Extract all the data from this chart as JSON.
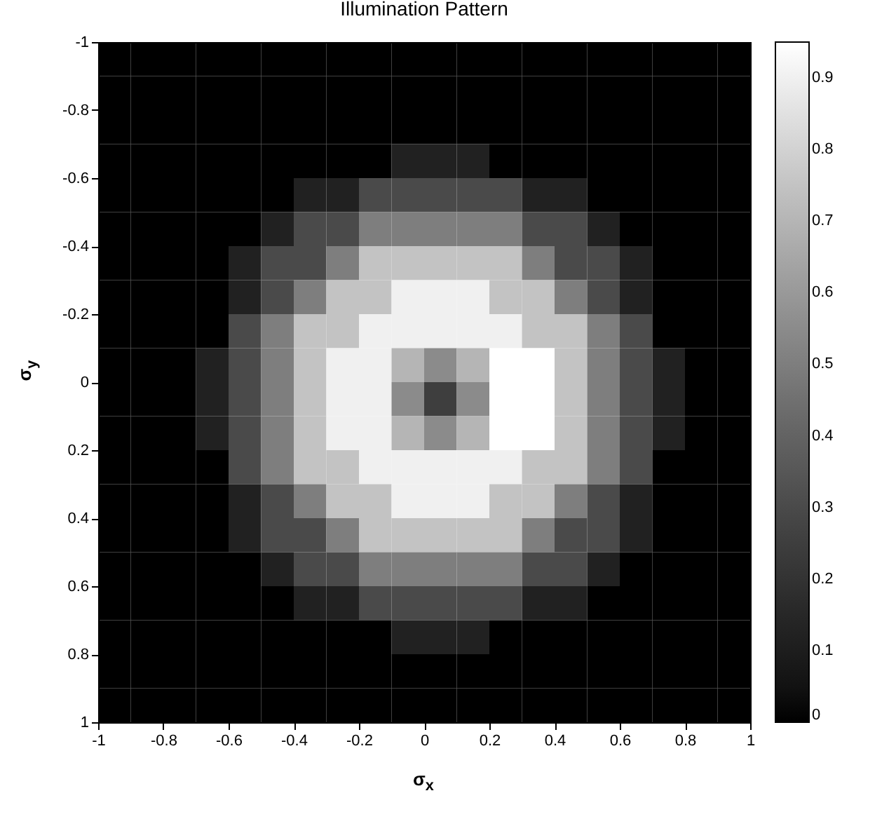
{
  "chart_data": {
    "type": "heatmap",
    "title": "Illumination Pattern",
    "xlabel": "σ$_{x}$",
    "ylabel": "σ$_{y}$",
    "x": [
      -0.95,
      -0.85,
      -0.75,
      -0.65,
      -0.55,
      -0.45,
      -0.35,
      -0.25,
      -0.15,
      -0.05,
      0.05,
      0.15,
      0.25,
      0.35,
      0.45,
      0.55,
      0.65,
      0.75,
      0.85,
      0.95
    ],
    "y": [
      -0.95,
      -0.85,
      -0.75,
      -0.65,
      -0.55,
      -0.45,
      -0.35,
      -0.25,
      -0.15,
      -0.05,
      0.05,
      0.15,
      0.25,
      0.35,
      0.45,
      0.55,
      0.65,
      0.75,
      0.85,
      0.95
    ],
    "cells": [
      [
        0,
        0,
        0,
        0,
        0,
        0,
        0,
        0,
        0,
        0,
        0,
        0,
        0,
        0,
        0,
        0,
        0,
        0,
        0,
        0
      ],
      [
        0,
        0,
        0,
        0,
        0,
        0,
        0,
        0,
        0,
        0,
        0,
        0,
        0,
        0,
        0,
        0,
        0,
        0,
        0,
        0
      ],
      [
        0,
        0,
        0,
        0,
        0,
        0,
        0,
        0,
        0,
        0,
        0,
        0,
        0,
        0,
        0,
        0,
        0,
        0,
        0,
        0
      ],
      [
        0,
        0,
        0,
        0,
        0,
        0,
        0,
        0,
        0,
        0.12,
        0.12,
        0.12,
        0,
        0,
        0,
        0,
        0,
        0,
        0,
        0
      ],
      [
        0,
        0,
        0,
        0,
        0,
        0,
        0.12,
        0.12,
        0.3,
        0.3,
        0.3,
        0.3,
        0.3,
        0.12,
        0.12,
        0,
        0,
        0,
        0,
        0
      ],
      [
        0,
        0,
        0,
        0,
        0,
        0.12,
        0.3,
        0.3,
        0.5,
        0.5,
        0.5,
        0.5,
        0.5,
        0.3,
        0.3,
        0.12,
        0,
        0,
        0,
        0
      ],
      [
        0,
        0,
        0,
        0,
        0.12,
        0.3,
        0.3,
        0.5,
        0.75,
        0.75,
        0.75,
        0.75,
        0.75,
        0.5,
        0.3,
        0.3,
        0.12,
        0,
        0,
        0
      ],
      [
        0,
        0,
        0,
        0,
        0.12,
        0.3,
        0.5,
        0.75,
        0.75,
        0.9,
        0.9,
        0.9,
        0.75,
        0.75,
        0.5,
        0.3,
        0.12,
        0,
        0,
        0
      ],
      [
        0,
        0,
        0,
        0,
        0.3,
        0.5,
        0.75,
        0.75,
        0.9,
        0.9,
        0.9,
        0.9,
        0.9,
        0.75,
        0.75,
        0.5,
        0.3,
        0,
        0,
        0
      ],
      [
        0,
        0,
        0,
        0.12,
        0.3,
        0.5,
        0.75,
        0.9,
        0.9,
        0.7,
        0.55,
        0.7,
        0.95,
        0.95,
        0.75,
        0.5,
        0.3,
        0.12,
        0,
        0
      ],
      [
        0,
        0,
        0,
        0.12,
        0.3,
        0.5,
        0.75,
        0.9,
        0.9,
        0.55,
        0.25,
        0.55,
        0.95,
        0.95,
        0.75,
        0.5,
        0.3,
        0.12,
        0,
        0
      ],
      [
        0,
        0,
        0,
        0.12,
        0.3,
        0.5,
        0.75,
        0.9,
        0.9,
        0.7,
        0.55,
        0.7,
        0.95,
        0.95,
        0.75,
        0.5,
        0.3,
        0.12,
        0,
        0
      ],
      [
        0,
        0,
        0,
        0,
        0.3,
        0.5,
        0.75,
        0.75,
        0.9,
        0.9,
        0.9,
        0.9,
        0.9,
        0.75,
        0.75,
        0.5,
        0.3,
        0,
        0,
        0
      ],
      [
        0,
        0,
        0,
        0,
        0.12,
        0.3,
        0.5,
        0.75,
        0.75,
        0.9,
        0.9,
        0.9,
        0.75,
        0.75,
        0.5,
        0.3,
        0.12,
        0,
        0,
        0
      ],
      [
        0,
        0,
        0,
        0,
        0.12,
        0.3,
        0.3,
        0.5,
        0.75,
        0.75,
        0.75,
        0.75,
        0.75,
        0.5,
        0.3,
        0.3,
        0.12,
        0,
        0,
        0
      ],
      [
        0,
        0,
        0,
        0,
        0,
        0.12,
        0.3,
        0.3,
        0.5,
        0.5,
        0.5,
        0.5,
        0.5,
        0.3,
        0.3,
        0.12,
        0,
        0,
        0,
        0
      ],
      [
        0,
        0,
        0,
        0,
        0,
        0,
        0.12,
        0.12,
        0.3,
        0.3,
        0.3,
        0.3,
        0.3,
        0.12,
        0.12,
        0,
        0,
        0,
        0,
        0
      ],
      [
        0,
        0,
        0,
        0,
        0,
        0,
        0,
        0,
        0,
        0.12,
        0.12,
        0.12,
        0,
        0,
        0,
        0,
        0,
        0,
        0,
        0
      ],
      [
        0,
        0,
        0,
        0,
        0,
        0,
        0,
        0,
        0,
        0,
        0,
        0,
        0,
        0,
        0,
        0,
        0,
        0,
        0,
        0
      ],
      [
        0,
        0,
        0,
        0,
        0,
        0,
        0,
        0,
        0,
        0,
        0,
        0,
        0,
        0,
        0,
        0,
        0,
        0,
        0,
        0
      ]
    ],
    "xlim": [
      -1,
      1
    ],
    "xticks": [
      -1,
      -0.8,
      -0.6,
      -0.4,
      -0.2,
      0,
      0.2,
      0.4,
      0.6,
      0.8,
      1
    ],
    "ylim": [
      1,
      -1
    ],
    "yticks": [
      -1,
      -0.8,
      -0.6,
      -0.4,
      -0.2,
      0,
      0.2,
      0.4,
      0.6,
      0.8,
      1
    ],
    "clim": [
      0,
      0.95
    ],
    "cticks": [
      0,
      0.1,
      0.2,
      0.3,
      0.4,
      0.5,
      0.6,
      0.7,
      0.8,
      0.9
    ]
  }
}
